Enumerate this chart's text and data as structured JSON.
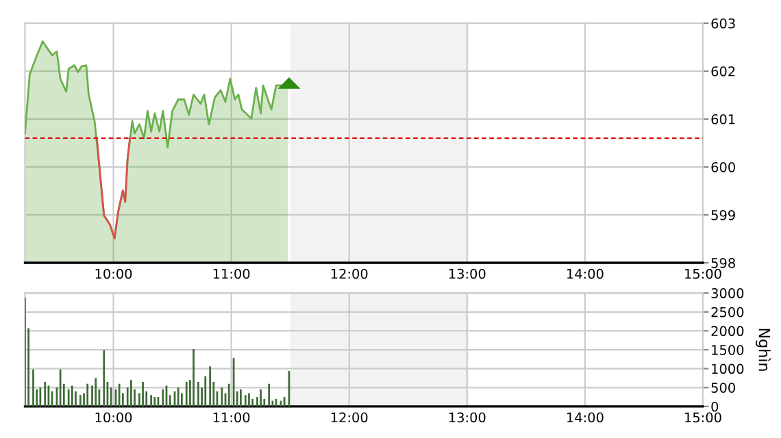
{
  "chart_data": [
    {
      "type": "area",
      "xlim": [
        9.25,
        15
      ],
      "xticks": [
        {
          "value": 10,
          "label": "10:00"
        },
        {
          "value": 11,
          "label": "11:00"
        },
        {
          "value": 12,
          "label": "12:00"
        },
        {
          "value": 13,
          "label": "13:00"
        },
        {
          "value": 14,
          "label": "14:00"
        },
        {
          "value": 15,
          "label": "15:00"
        }
      ],
      "ylim": [
        598,
        603
      ],
      "yticks": [
        598,
        599,
        600,
        601,
        602,
        603
      ],
      "grid": true,
      "legend": false,
      "series": [
        {
          "type": "area",
          "color": "#6ab04c",
          "x": [
            9.25,
            9.29,
            9.35,
            9.4,
            9.43,
            9.48,
            9.52,
            9.55,
            9.6,
            9.62,
            9.67,
            9.7,
            9.73,
            9.77,
            9.79,
            9.84,
            9.88,
            9.92,
            9.97,
            10.01,
            10.04,
            10.08,
            10.1,
            10.12,
            10.16,
            10.18,
            10.22,
            10.26,
            10.29,
            10.32,
            10.35,
            10.39,
            10.42,
            10.46,
            10.5,
            10.55,
            10.6,
            10.64,
            10.68,
            10.74,
            10.77,
            10.81,
            10.86,
            10.91,
            10.95,
            10.99,
            11.03,
            11.06,
            11.09,
            11.17,
            11.21,
            11.25,
            11.27,
            11.31,
            11.34,
            11.38,
            11.43,
            11.48
          ],
          "values": [
            600.7,
            601.94,
            602.32,
            602.62,
            602.51,
            602.33,
            602.41,
            601.84,
            601.57,
            602.05,
            602.12,
            601.98,
            602.1,
            602.12,
            601.51,
            600.96,
            600.03,
            598.99,
            598.8,
            598.51,
            599.06,
            599.51,
            599.27,
            600.17,
            600.96,
            600.7,
            600.89,
            600.6,
            601.17,
            600.74,
            601.12,
            600.74,
            601.17,
            600.41,
            601.17,
            601.41,
            601.41,
            601.09,
            601.51,
            601.32,
            601.51,
            600.89,
            601.45,
            601.6,
            601.36,
            601.84,
            601.41,
            601.51,
            601.2,
            601.01,
            601.65,
            601.12,
            601.7,
            601.41,
            601.2,
            601.7,
            601.7,
            601.7
          ]
        },
        {
          "type": "line",
          "color": "#d9534f",
          "x": [
            9.86,
            9.88,
            9.92,
            9.97,
            10.01,
            10.04,
            10.08,
            10.1,
            10.12,
            10.14
          ],
          "values": [
            600.6,
            600.03,
            598.99,
            598.8,
            598.51,
            599.06,
            599.51,
            599.27,
            600.17,
            600.6
          ]
        }
      ],
      "ref_lines": [
        {
          "axis": "y",
          "value": 600.6,
          "color": "#dd0000",
          "line_style": "dashed"
        }
      ],
      "bands": [
        {
          "axis": "x",
          "from": 11.5,
          "to": 13,
          "color": "#f2f2f2"
        }
      ]
    },
    {
      "type": "bar",
      "xlim": [
        9.25,
        15
      ],
      "xticks": [
        {
          "value": 10,
          "label": "10:00"
        },
        {
          "value": 11,
          "label": "11:00"
        },
        {
          "value": 12,
          "label": "12:00"
        },
        {
          "value": 13,
          "label": "13:00"
        },
        {
          "value": 14,
          "label": "14:00"
        },
        {
          "value": 15,
          "label": "15:00"
        }
      ],
      "ylim": [
        0,
        3000
      ],
      "yticks": [
        0,
        500,
        1000,
        1500,
        2000,
        2500,
        3000
      ],
      "y2label": "Nghìn",
      "grid": true,
      "legend": false,
      "series": [
        {
          "color": "#3d6b35",
          "x": [
            9.25,
            9.28,
            9.32,
            9.35,
            9.38,
            9.42,
            9.45,
            9.48,
            9.52,
            9.55,
            9.58,
            9.62,
            9.65,
            9.68,
            9.72,
            9.75,
            9.78,
            9.82,
            9.85,
            9.88,
            9.92,
            9.95,
            9.98,
            10.02,
            10.05,
            10.08,
            10.12,
            10.15,
            10.18,
            10.22,
            10.25,
            10.28,
            10.32,
            10.35,
            10.38,
            10.42,
            10.45,
            10.48,
            10.52,
            10.55,
            10.58,
            10.62,
            10.65,
            10.68,
            10.72,
            10.75,
            10.78,
            10.82,
            10.85,
            10.88,
            10.92,
            10.95,
            10.98,
            11.02,
            11.05,
            11.08,
            11.12,
            11.15,
            11.18,
            11.22,
            11.25,
            11.28,
            11.32,
            11.35,
            11.38,
            11.42,
            11.45,
            11.49
          ],
          "values": [
            2880,
            2070,
            980,
            450,
            500,
            650,
            550,
            400,
            500,
            980,
            600,
            450,
            550,
            400,
            300,
            350,
            600,
            550,
            750,
            450,
            1490,
            650,
            500,
            450,
            600,
            350,
            500,
            700,
            450,
            350,
            650,
            400,
            300,
            250,
            250,
            450,
            550,
            300,
            400,
            500,
            350,
            650,
            700,
            1520,
            650,
            500,
            800,
            1060,
            650,
            400,
            500,
            350,
            600,
            1280,
            400,
            450,
            300,
            350,
            200,
            250,
            450,
            200,
            600,
            150,
            200,
            150,
            250,
            940
          ]
        }
      ],
      "bands": [
        {
          "axis": "x",
          "from": 11.5,
          "to": 13,
          "color": "#f2f2f2"
        }
      ]
    }
  ]
}
